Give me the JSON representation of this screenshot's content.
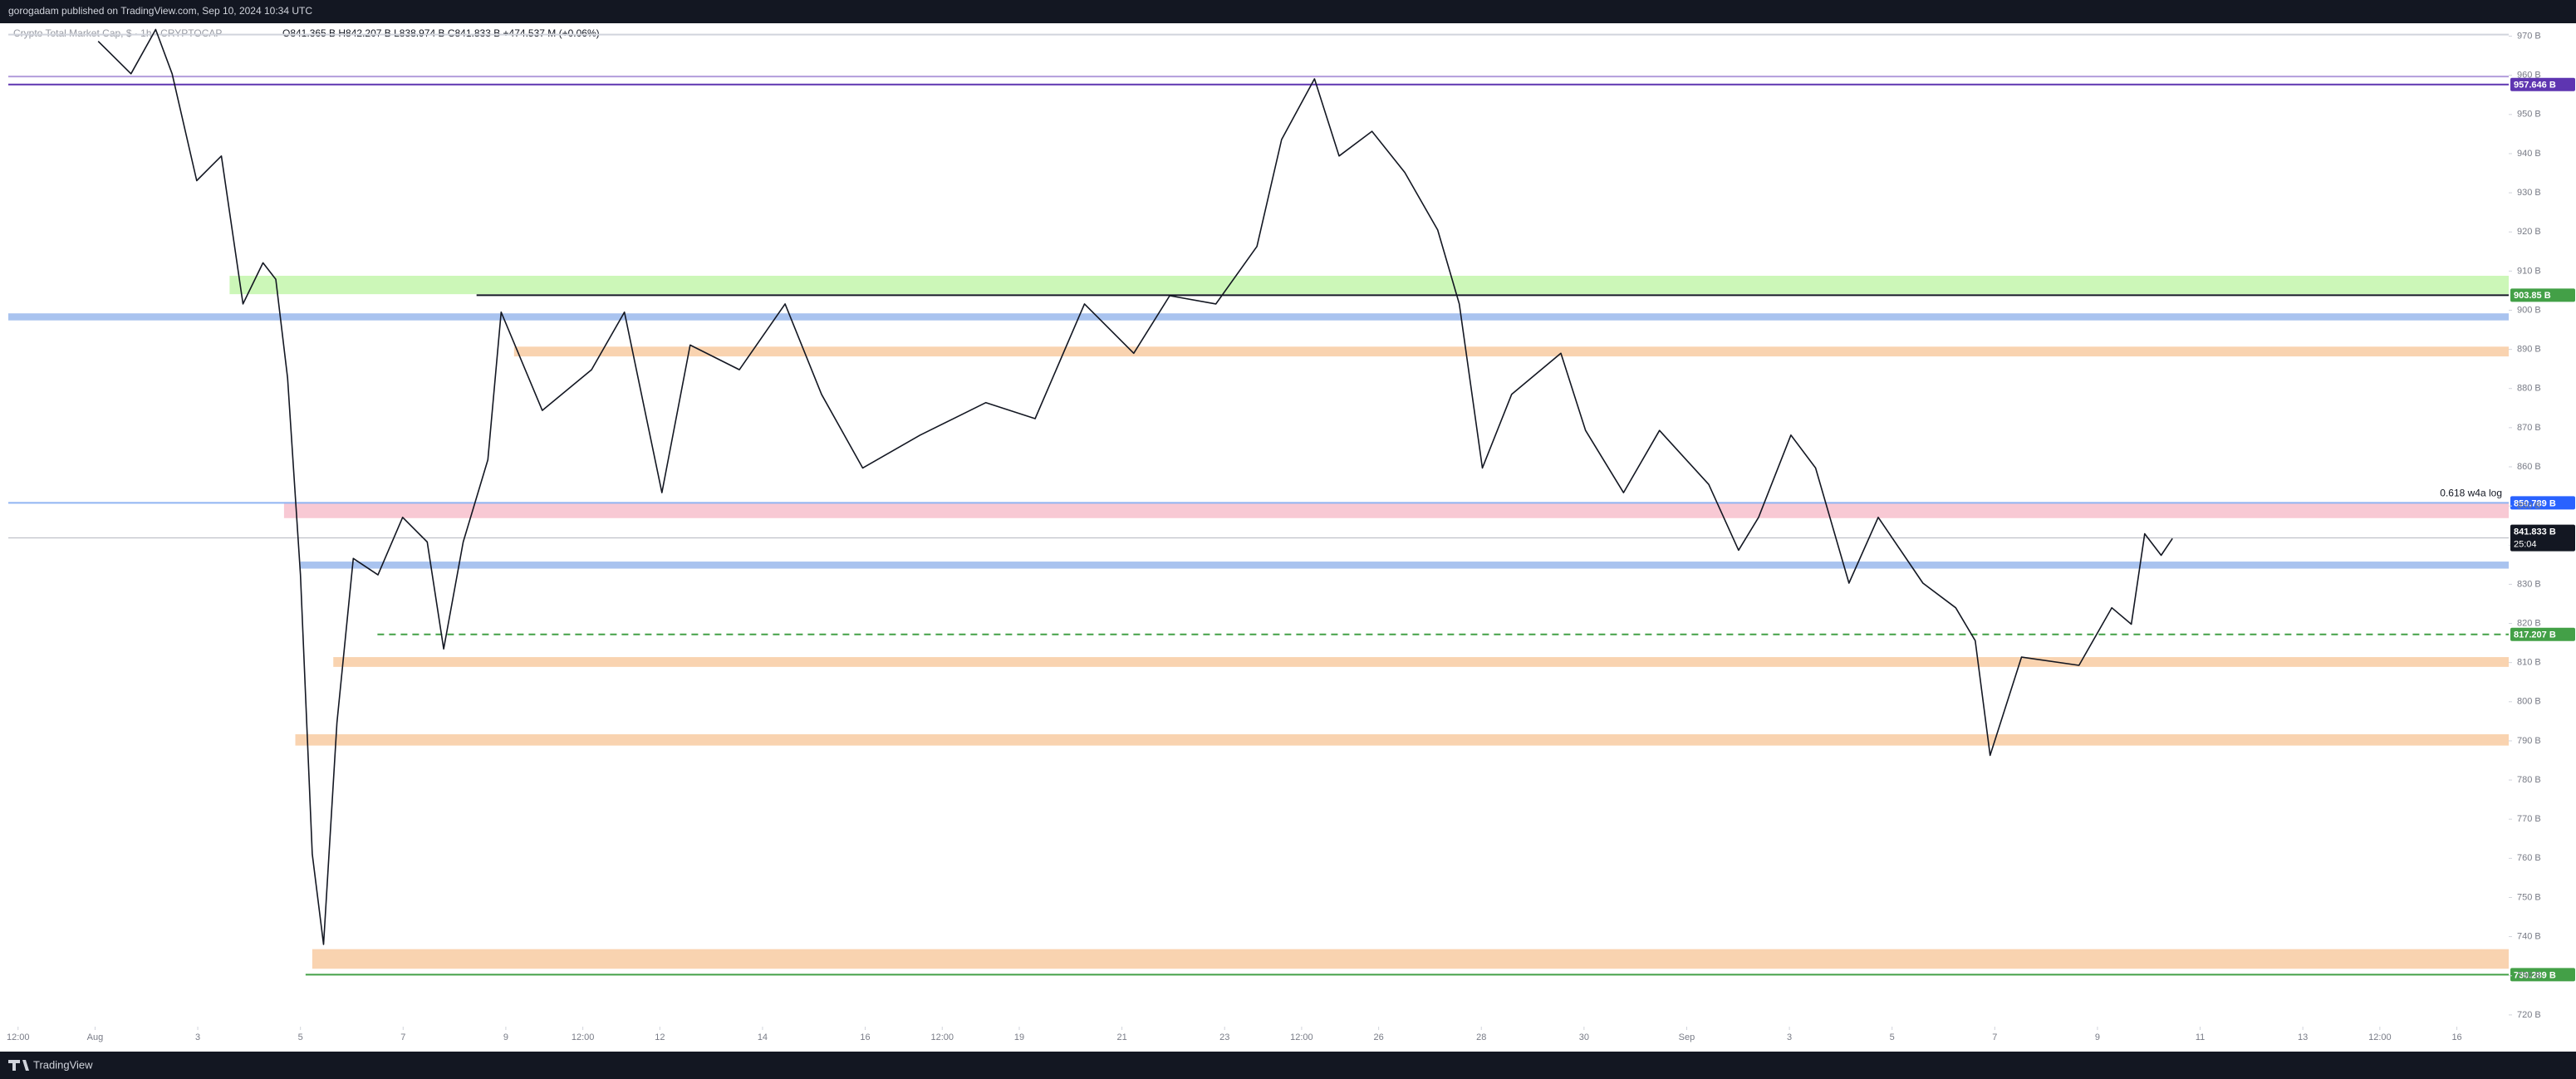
{
  "header": {
    "publisher": "gorogadam published on TradingView.com, Sep 10, 2024 10:34 UTC"
  },
  "legend": {
    "symbol": "Crypto Total Market Cap, $ · 1h · CRYPTOCAP",
    "ohlc": "O841.365 B  H842.207 B  L838.974 B  C841.833 B  +474.537 M (+0.06%)"
  },
  "footer": {
    "brand": "TradingView"
  },
  "chart_data": {
    "type": "line",
    "color": "#131722",
    "x": [
      1.06,
      1.7,
      2.18,
      2.5,
      2.98,
      3.46,
      3.88,
      4.27,
      4.52,
      4.75,
      5.0,
      5.23,
      5.45,
      5.71,
      6.03,
      6.51,
      6.99,
      7.47,
      7.79,
      8.17,
      8.65,
      8.91,
      9.71,
      10.67,
      11.31,
      12.04,
      12.59,
      13.55,
      14.44,
      15.15,
      15.95,
      17.07,
      18.35,
      19.31,
      20.27,
      21.23,
      21.93,
      22.83,
      23.63,
      24.11,
      24.75,
      25.23,
      25.87,
      26.51,
      27.15,
      27.57,
      28.02,
      28.59,
      29.55,
      30.03,
      30.77,
      31.47,
      32.43,
      33.01,
      33.4,
      34.03,
      34.51,
      35.16,
      35.73,
      36.6,
      37.24,
      37.62,
      37.91,
      38.52,
      39.64,
      40.28,
      40.66,
      40.92,
      41.24,
      41.46
    ],
    "values": [
      968.7,
      960.4,
      971.7,
      960.4,
      933.1,
      939.4,
      901.6,
      912.1,
      907.9,
      882.7,
      832.4,
      761.1,
      738.0,
      794.6,
      836.6,
      832.4,
      847.1,
      840.8,
      813.5,
      840.8,
      861.8,
      899.5,
      874.4,
      884.8,
      899.5,
      853.4,
      891.1,
      884.8,
      901.6,
      878.5,
      859.7,
      868.1,
      876.4,
      872.3,
      901.6,
      889.0,
      903.7,
      901.6,
      916.3,
      943.6,
      959.1,
      939.4,
      945.7,
      935.2,
      920.5,
      901.6,
      859.7,
      878.5,
      889.0,
      869.3,
      853.4,
      869.3,
      855.5,
      838.7,
      847.1,
      868.1,
      859.7,
      830.3,
      847.1,
      830.3,
      824.0,
      815.6,
      786.3,
      811.4,
      809.3,
      824.0,
      819.8,
      842.9,
      837.4,
      841.7
    ],
    "xlim": [
      -0.69,
      48.01
    ],
    "ylim": [
      717.0,
      973.3
    ],
    "xticks": [
      {
        "value": -0.5,
        "label": "12:00"
      },
      {
        "value": 1,
        "label": "Aug"
      },
      3,
      5,
      7,
      9,
      {
        "value": 10.5,
        "label": "12:00"
      },
      12,
      14,
      16,
      {
        "value": 17.5,
        "label": "12:00"
      },
      19,
      21,
      23,
      {
        "value": 24.5,
        "label": "12:00"
      },
      26,
      28,
      30,
      {
        "value": 32,
        "label": "Sep"
      },
      {
        "value": 34,
        "label": "3"
      },
      {
        "value": 36,
        "label": "5"
      },
      {
        "value": 38,
        "label": "7"
      },
      {
        "value": 40,
        "label": "9"
      },
      {
        "value": 42,
        "label": "11"
      },
      {
        "value": 44,
        "label": "13"
      },
      {
        "value": 45.5,
        "label": "12:00"
      },
      {
        "value": 47,
        "label": "16"
      }
    ],
    "yticks": [
      {
        "value": 720,
        "label": "720 B"
      },
      {
        "value": 730,
        "label": "730 B"
      },
      {
        "value": 740,
        "label": "740 B"
      },
      {
        "value": 750,
        "label": "750 B"
      },
      {
        "value": 760,
        "label": "760 B"
      },
      {
        "value": 770,
        "label": "770 B"
      },
      {
        "value": 780,
        "label": "780 B"
      },
      {
        "value": 790,
        "label": "790 B"
      },
      {
        "value": 800,
        "label": "800 B"
      },
      {
        "value": 810,
        "label": "810 B"
      },
      {
        "value": 820,
        "label": "820 B"
      },
      {
        "value": 830,
        "label": "830 B"
      },
      {
        "value": 840,
        "label": "840 B"
      },
      {
        "value": 850,
        "label": "850 B"
      },
      {
        "value": 860,
        "label": "860 B"
      },
      {
        "value": 870,
        "label": "870 B"
      },
      {
        "value": 880,
        "label": "880 B"
      },
      {
        "value": 890,
        "label": "890 B"
      },
      {
        "value": 900,
        "label": "900 B"
      },
      {
        "value": 910,
        "label": "910 B"
      },
      {
        "value": 920,
        "label": "920 B"
      },
      {
        "value": 930,
        "label": "930 B"
      },
      {
        "value": 940,
        "label": "940 B"
      },
      {
        "value": 950,
        "label": "950 B"
      },
      {
        "value": 960,
        "label": "960 B"
      },
      {
        "value": 970,
        "label": "970 B"
      }
    ],
    "zones": [
      {
        "low": 904.1,
        "high": 908.8,
        "from": 3.62,
        "color": "#ccf7b8"
      },
      {
        "low": 897.4,
        "high": 899.2,
        "color": "#a9c3ef"
      },
      {
        "low": 888.2,
        "high": 890.7,
        "from": 9.16,
        "color": "#f9d3b0"
      },
      {
        "low": 846.9,
        "high": 851.0,
        "from": 4.68,
        "color": "#f8c9d4"
      },
      {
        "low": 834.0,
        "high": 835.8,
        "from": 5.0,
        "color": "#a9c3ef"
      },
      {
        "low": 808.9,
        "high": 811.4,
        "from": 5.64,
        "color": "#f9d3b0"
      },
      {
        "low": 788.8,
        "high": 791.7,
        "from": 4.9,
        "color": "#f9d3b0"
      },
      {
        "low": 731.8,
        "high": 736.8,
        "from": 5.23,
        "color": "#f9d3b0"
      }
    ],
    "lines": [
      {
        "value": 970.4,
        "color": "#d1d4dc"
      },
      {
        "value": 959.7,
        "color": "#b39ddb"
      },
      {
        "value": 957.646,
        "label": "957.646 B",
        "color": "#5e35b1"
      },
      {
        "value": 903.85,
        "label": "903.85 B",
        "color": "#43a047",
        "line_color": "#131722",
        "from": 8.43
      },
      {
        "value": 850.789,
        "label": "850.789 B",
        "color": "#2962ff",
        "line_color": "#90b4f2",
        "note": "0.618  w4a log"
      },
      {
        "value": 817.207,
        "label": "817.207 B",
        "color": "#43a047",
        "dash": true,
        "from": 6.5
      },
      {
        "value": 730.289,
        "label": "730.289 B",
        "color": "#43a047",
        "from": 5.1
      }
    ],
    "last": {
      "value": 841.833,
      "label": "841.833 B",
      "countdown": "25:04",
      "color": "#131722"
    }
  }
}
